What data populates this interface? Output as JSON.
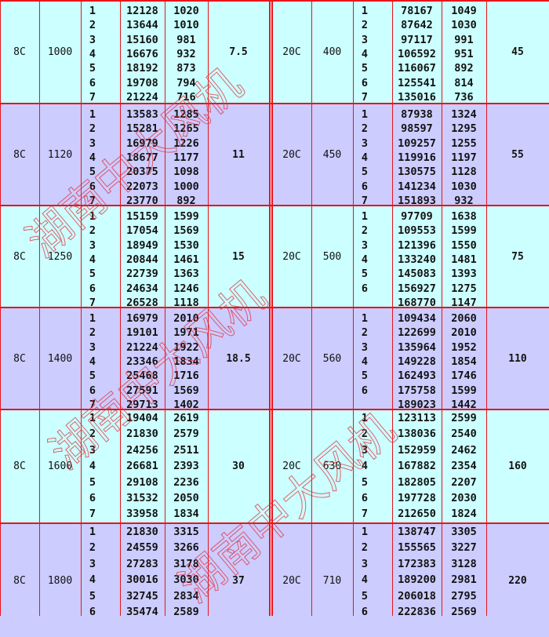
{
  "colors": {
    "band_a": "#ccffff",
    "band_b": "#ccccff",
    "border": "#e8141c"
  },
  "watermark": "湖南中大风机",
  "left": [
    {
      "model": "8C",
      "size": "1000",
      "power": "7.5",
      "rows": [
        [
          "1",
          "12128",
          "1020"
        ],
        [
          "2",
          "13644",
          "1010"
        ],
        [
          "3",
          "15160",
          "981"
        ],
        [
          "4",
          "16676",
          "932"
        ],
        [
          "5",
          "18192",
          "873"
        ],
        [
          "6",
          "19708",
          "794"
        ],
        [
          "7",
          "21224",
          "716"
        ]
      ]
    },
    {
      "model": "8C",
      "size": "1120",
      "power": "11",
      "rows": [
        [
          "1",
          "13583",
          "1285"
        ],
        [
          "2",
          "15281",
          "1265"
        ],
        [
          "3",
          "16979",
          "1226"
        ],
        [
          "4",
          "18677",
          "1177"
        ],
        [
          "5",
          "20375",
          "1098"
        ],
        [
          "6",
          "22073",
          "1000"
        ],
        [
          "7",
          "23770",
          "892"
        ]
      ]
    },
    {
      "model": "8C",
      "size": "1250",
      "power": "15",
      "rows": [
        [
          "1",
          "15159",
          "1599"
        ],
        [
          "2",
          "17054",
          "1569"
        ],
        [
          "3",
          "18949",
          "1530"
        ],
        [
          "4",
          "20844",
          "1461"
        ],
        [
          "5",
          "22739",
          "1363"
        ],
        [
          "6",
          "24634",
          "1246"
        ],
        [
          "7",
          "26528",
          "1118"
        ]
      ]
    },
    {
      "model": "8C",
      "size": "1400",
      "power": "18.5",
      "rows": [
        [
          "1",
          "16979",
          "2010"
        ],
        [
          "2",
          "19101",
          "1971"
        ],
        [
          "3",
          "21224",
          "1922"
        ],
        [
          "4",
          "23346",
          "1834"
        ],
        [
          "5",
          "25468",
          "1716"
        ],
        [
          "6",
          "27591",
          "1569"
        ],
        [
          "7",
          "29713",
          "1402"
        ]
      ]
    },
    {
      "model": "8C",
      "size": "1600",
      "power": "30",
      "rows": [
        [
          "1",
          "19404",
          "2619"
        ],
        [
          "2",
          "21830",
          "2579"
        ],
        [
          "3",
          "24256",
          "2511"
        ],
        [
          "4",
          "26681",
          "2393"
        ],
        [
          "5",
          "29108",
          "2236"
        ],
        [
          "6",
          "31532",
          "2050"
        ],
        [
          "7",
          "33958",
          "1834"
        ]
      ]
    },
    {
      "model": "8C",
      "size": "1800",
      "power": "37",
      "rows": [
        [
          "1",
          "21830",
          "3315"
        ],
        [
          "2",
          "24559",
          "3266"
        ],
        [
          "3",
          "27283",
          "3178"
        ],
        [
          "4",
          "30016",
          "3030"
        ],
        [
          "5",
          "32745",
          "2834"
        ],
        [
          "6",
          "35474",
          "2589"
        ]
      ]
    }
  ],
  "right": [
    {
      "model": "20C",
      "size": "400",
      "power": "45",
      "rows": [
        [
          "1",
          "78167",
          "1049"
        ],
        [
          "2",
          "87642",
          "1030"
        ],
        [
          "3",
          "97117",
          "991"
        ],
        [
          "4",
          "106592",
          "951"
        ],
        [
          "5",
          "116067",
          "892"
        ],
        [
          "6",
          "125541",
          "814"
        ],
        [
          "7",
          "135016",
          "736"
        ]
      ]
    },
    {
      "model": "20C",
      "size": "450",
      "power": "55",
      "rows": [
        [
          "1",
          "87938",
          "1324"
        ],
        [
          "2",
          "98597",
          "1295"
        ],
        [
          "3",
          "109257",
          "1255"
        ],
        [
          "4",
          "119916",
          "1197"
        ],
        [
          "5",
          "130575",
          "1128"
        ],
        [
          "6",
          "141234",
          "1030"
        ],
        [
          "7",
          "151893",
          "932"
        ]
      ]
    },
    {
      "model": "20C",
      "size": "500",
      "power": "75",
      "rows": [
        [
          "1",
          "97709",
          "1638"
        ],
        [
          "2",
          "109553",
          "1599"
        ],
        [
          "3",
          "121396",
          "1550"
        ],
        [
          "4",
          "133240",
          "1481"
        ],
        [
          "5",
          "145083",
          "1393"
        ],
        [
          "6",
          "156927",
          "1275"
        ],
        [
          "",
          "168770",
          "1147"
        ]
      ]
    },
    {
      "model": "20C",
      "size": "560",
      "power": "110",
      "rows": [
        [
          "1",
          "109434",
          "2060"
        ],
        [
          "2",
          "122699",
          "2010"
        ],
        [
          "3",
          "135964",
          "1952"
        ],
        [
          "4",
          "149228",
          "1854"
        ],
        [
          "5",
          "162493",
          "1746"
        ],
        [
          "6",
          "175758",
          "1599"
        ],
        [
          "",
          "189023",
          "1442"
        ]
      ]
    },
    {
      "model": "20C",
      "size": "630",
      "power": "160",
      "rows": [
        [
          "1",
          "123113",
          "2599"
        ],
        [
          "2",
          "138036",
          "2540"
        ],
        [
          "3",
          "152959",
          "2462"
        ],
        [
          "4",
          "167882",
          "2354"
        ],
        [
          "5",
          "182805",
          "2207"
        ],
        [
          "6",
          "197728",
          "2030"
        ],
        [
          "7",
          "212650",
          "1824"
        ]
      ]
    },
    {
      "model": "20C",
      "size": "710",
      "power": "220",
      "rows": [
        [
          "1",
          "138747",
          "3305"
        ],
        [
          "2",
          "155565",
          "3227"
        ],
        [
          "3",
          "172383",
          "3128"
        ],
        [
          "4",
          "189200",
          "2981"
        ],
        [
          "5",
          "206018",
          "2795"
        ],
        [
          "6",
          "222836",
          "2569"
        ]
      ]
    }
  ]
}
